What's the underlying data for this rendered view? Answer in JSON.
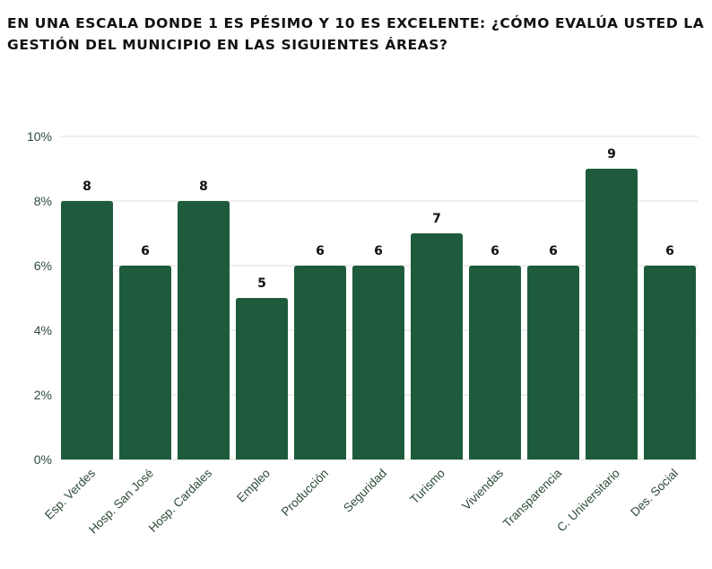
{
  "chart_data": {
    "type": "bar",
    "title": "EN UNA ESCALA DONDE 1 ES PÉSIMO Y 10 ES EXCELENTE: ¿CÓMO EVALÚA USTED LA GESTIÓN DEL MUNICIPIO EN LAS SIGUIENTES ÁREAS?",
    "categories": [
      "Esp. Verdes",
      "Hosp. San José",
      "Hosp. Cardales",
      "Empleo",
      "Producción",
      "Seguridad",
      "Turismo",
      "Viviendas",
      "Transparencia",
      "C. Universitario",
      "Des. Social"
    ],
    "values": [
      8,
      6,
      8,
      5,
      6,
      6,
      7,
      6,
      6,
      9,
      6
    ],
    "data_labels": [
      "8",
      "6",
      "8",
      "5",
      "6",
      "6",
      "7",
      "6",
      "6",
      "9",
      "6"
    ],
    "ylim": [
      0,
      10
    ],
    "yticks": [
      0,
      2,
      4,
      6,
      8,
      10
    ],
    "ytick_labels": [
      "0%",
      "2%",
      "4%",
      "6%",
      "8%",
      "10%"
    ],
    "xlabel": "",
    "ylabel": "",
    "grid": true,
    "bar_color": "#1e5b3c",
    "gridline_color": "#dddddd"
  }
}
